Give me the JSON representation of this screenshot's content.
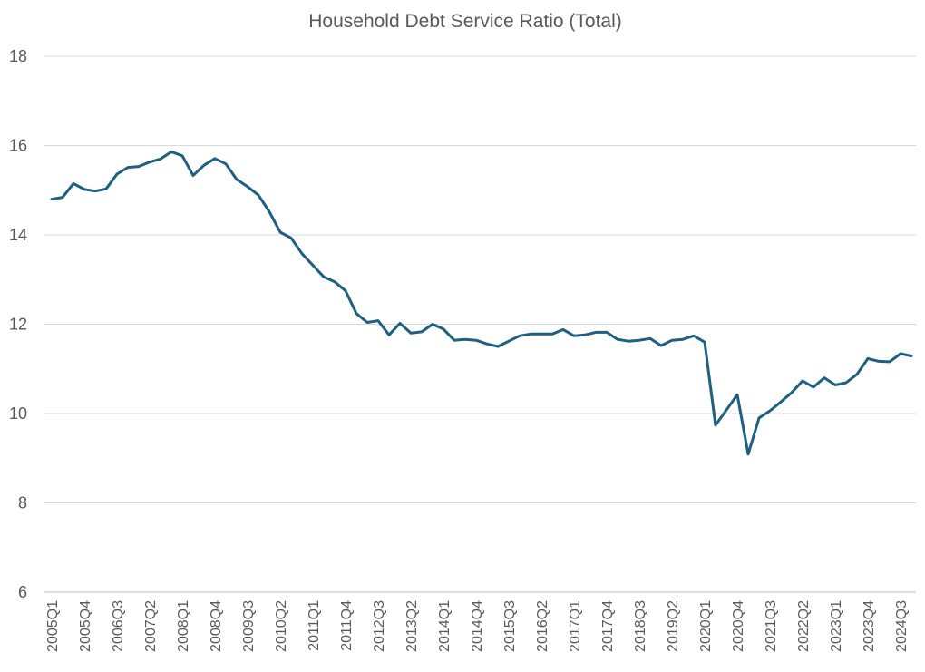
{
  "chart_data": {
    "type": "line",
    "title": "Household Debt Service Ratio (Total)",
    "xlabel": "",
    "ylabel": "",
    "ylim": [
      6,
      18
    ],
    "yticks": [
      6,
      8,
      10,
      12,
      14,
      16,
      18
    ],
    "grid": true,
    "legend": "none",
    "x": [
      "2005Q1",
      "2005Q2",
      "2005Q3",
      "2005Q4",
      "2006Q1",
      "2006Q2",
      "2006Q3",
      "2006Q4",
      "2007Q1",
      "2007Q2",
      "2007Q3",
      "2007Q4",
      "2008Q1",
      "2008Q2",
      "2008Q3",
      "2008Q4",
      "2009Q1",
      "2009Q2",
      "2009Q3",
      "2009Q4",
      "2010Q1",
      "2010Q2",
      "2010Q3",
      "2010Q4",
      "2011Q1",
      "2011Q2",
      "2011Q3",
      "2011Q4",
      "2012Q1",
      "2012Q2",
      "2012Q3",
      "2012Q4",
      "2013Q1",
      "2013Q2",
      "2013Q3",
      "2013Q4",
      "2014Q1",
      "2014Q2",
      "2014Q3",
      "2014Q4",
      "2015Q1",
      "2015Q2",
      "2015Q3",
      "2015Q4",
      "2016Q1",
      "2016Q2",
      "2016Q3",
      "2016Q4",
      "2017Q1",
      "2017Q2",
      "2017Q3",
      "2017Q4",
      "2018Q1",
      "2018Q2",
      "2018Q3",
      "2018Q4",
      "2019Q1",
      "2019Q2",
      "2019Q3",
      "2019Q4",
      "2020Q1",
      "2020Q2",
      "2020Q3",
      "2020Q4",
      "2021Q1",
      "2021Q2",
      "2021Q3",
      "2021Q4",
      "2022Q1",
      "2022Q2",
      "2022Q3",
      "2022Q4",
      "2023Q1",
      "2023Q2",
      "2023Q3",
      "2023Q4",
      "2024Q1",
      "2024Q2",
      "2024Q3",
      "2024Q4"
    ],
    "xtick_labels": [
      "2005Q1",
      "2005Q4",
      "2006Q3",
      "2007Q2",
      "2008Q1",
      "2008Q4",
      "2009Q3",
      "2010Q2",
      "2011Q1",
      "2011Q4",
      "2012Q3",
      "2013Q2",
      "2014Q1",
      "2014Q4",
      "2015Q3",
      "2016Q2",
      "2017Q1",
      "2017Q4",
      "2018Q3",
      "2019Q2",
      "2020Q1",
      "2020Q4",
      "2021Q3",
      "2022Q2",
      "2023Q1",
      "2023Q4",
      "2024Q3"
    ],
    "series": [
      {
        "color": "#1f5f7f",
        "values": [
          14.8,
          14.84,
          15.15,
          15.02,
          14.98,
          15.03,
          15.36,
          15.51,
          15.53,
          15.63,
          15.7,
          15.86,
          15.77,
          15.33,
          15.56,
          15.71,
          15.59,
          15.24,
          15.08,
          14.89,
          14.52,
          14.06,
          13.93,
          13.58,
          13.32,
          13.06,
          12.95,
          12.75,
          12.24,
          12.04,
          12.08,
          11.76,
          12.02,
          11.8,
          11.83,
          12.0,
          11.89,
          11.64,
          11.66,
          11.64,
          11.56,
          11.5,
          11.62,
          11.74,
          11.78,
          11.78,
          11.78,
          11.88,
          11.74,
          11.76,
          11.82,
          11.82,
          11.66,
          11.62,
          11.64,
          11.68,
          11.52,
          11.64,
          11.66,
          11.74,
          11.6,
          9.74,
          10.08,
          10.42,
          9.09,
          9.9,
          10.06,
          10.26,
          10.47,
          10.73,
          10.59,
          10.8,
          10.64,
          10.69,
          10.88,
          11.23,
          11.17,
          11.16,
          11.34,
          11.29
        ]
      }
    ]
  }
}
